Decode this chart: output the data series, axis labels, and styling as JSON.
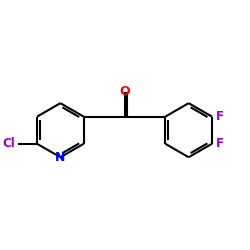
{
  "background_color": "#ffffff",
  "bond_color": "#000000",
  "atom_colors": {
    "O": "#ff0000",
    "N": "#0000ff",
    "Cl": "#9900cc",
    "F": "#9900cc"
  },
  "figsize": [
    2.5,
    2.5
  ],
  "dpi": 100
}
